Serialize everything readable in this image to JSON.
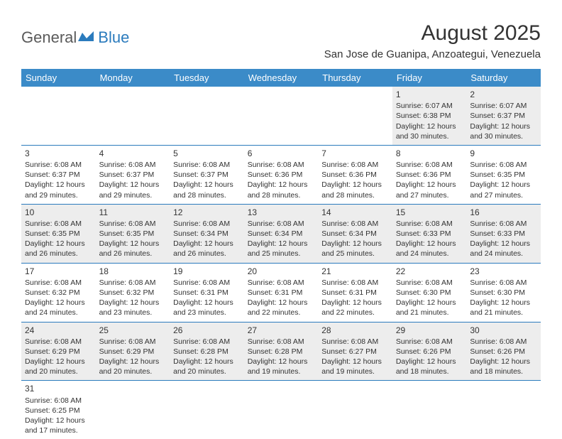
{
  "logo": {
    "part1": "General",
    "part2": "Blue"
  },
  "title": "August 2025",
  "location": "San Jose de Guanipa, Anzoategui, Venezuela",
  "colors": {
    "header_bg": "#3b8bc8",
    "header_text": "#ffffff",
    "border": "#2b7bbd",
    "shaded_bg": "#ededed",
    "text": "#333333",
    "logo_gray": "#5a5a5a",
    "logo_blue": "#2b7bbd"
  },
  "weekdays": [
    "Sunday",
    "Monday",
    "Tuesday",
    "Wednesday",
    "Thursday",
    "Friday",
    "Saturday"
  ],
  "weeks": [
    [
      null,
      null,
      null,
      null,
      null,
      {
        "n": "1",
        "sr": "6:07 AM",
        "ss": "6:38 PM",
        "dl": "12 hours and 30 minutes."
      },
      {
        "n": "2",
        "sr": "6:07 AM",
        "ss": "6:37 PM",
        "dl": "12 hours and 30 minutes."
      }
    ],
    [
      {
        "n": "3",
        "sr": "6:08 AM",
        "ss": "6:37 PM",
        "dl": "12 hours and 29 minutes."
      },
      {
        "n": "4",
        "sr": "6:08 AM",
        "ss": "6:37 PM",
        "dl": "12 hours and 29 minutes."
      },
      {
        "n": "5",
        "sr": "6:08 AM",
        "ss": "6:37 PM",
        "dl": "12 hours and 28 minutes."
      },
      {
        "n": "6",
        "sr": "6:08 AM",
        "ss": "6:36 PM",
        "dl": "12 hours and 28 minutes."
      },
      {
        "n": "7",
        "sr": "6:08 AM",
        "ss": "6:36 PM",
        "dl": "12 hours and 28 minutes."
      },
      {
        "n": "8",
        "sr": "6:08 AM",
        "ss": "6:36 PM",
        "dl": "12 hours and 27 minutes."
      },
      {
        "n": "9",
        "sr": "6:08 AM",
        "ss": "6:35 PM",
        "dl": "12 hours and 27 minutes."
      }
    ],
    [
      {
        "n": "10",
        "sr": "6:08 AM",
        "ss": "6:35 PM",
        "dl": "12 hours and 26 minutes."
      },
      {
        "n": "11",
        "sr": "6:08 AM",
        "ss": "6:35 PM",
        "dl": "12 hours and 26 minutes."
      },
      {
        "n": "12",
        "sr": "6:08 AM",
        "ss": "6:34 PM",
        "dl": "12 hours and 26 minutes."
      },
      {
        "n": "13",
        "sr": "6:08 AM",
        "ss": "6:34 PM",
        "dl": "12 hours and 25 minutes."
      },
      {
        "n": "14",
        "sr": "6:08 AM",
        "ss": "6:34 PM",
        "dl": "12 hours and 25 minutes."
      },
      {
        "n": "15",
        "sr": "6:08 AM",
        "ss": "6:33 PM",
        "dl": "12 hours and 24 minutes."
      },
      {
        "n": "16",
        "sr": "6:08 AM",
        "ss": "6:33 PM",
        "dl": "12 hours and 24 minutes."
      }
    ],
    [
      {
        "n": "17",
        "sr": "6:08 AM",
        "ss": "6:32 PM",
        "dl": "12 hours and 24 minutes."
      },
      {
        "n": "18",
        "sr": "6:08 AM",
        "ss": "6:32 PM",
        "dl": "12 hours and 23 minutes."
      },
      {
        "n": "19",
        "sr": "6:08 AM",
        "ss": "6:31 PM",
        "dl": "12 hours and 23 minutes."
      },
      {
        "n": "20",
        "sr": "6:08 AM",
        "ss": "6:31 PM",
        "dl": "12 hours and 22 minutes."
      },
      {
        "n": "21",
        "sr": "6:08 AM",
        "ss": "6:31 PM",
        "dl": "12 hours and 22 minutes."
      },
      {
        "n": "22",
        "sr": "6:08 AM",
        "ss": "6:30 PM",
        "dl": "12 hours and 21 minutes."
      },
      {
        "n": "23",
        "sr": "6:08 AM",
        "ss": "6:30 PM",
        "dl": "12 hours and 21 minutes."
      }
    ],
    [
      {
        "n": "24",
        "sr": "6:08 AM",
        "ss": "6:29 PM",
        "dl": "12 hours and 20 minutes."
      },
      {
        "n": "25",
        "sr": "6:08 AM",
        "ss": "6:29 PM",
        "dl": "12 hours and 20 minutes."
      },
      {
        "n": "26",
        "sr": "6:08 AM",
        "ss": "6:28 PM",
        "dl": "12 hours and 20 minutes."
      },
      {
        "n": "27",
        "sr": "6:08 AM",
        "ss": "6:28 PM",
        "dl": "12 hours and 19 minutes."
      },
      {
        "n": "28",
        "sr": "6:08 AM",
        "ss": "6:27 PM",
        "dl": "12 hours and 19 minutes."
      },
      {
        "n": "29",
        "sr": "6:08 AM",
        "ss": "6:26 PM",
        "dl": "12 hours and 18 minutes."
      },
      {
        "n": "30",
        "sr": "6:08 AM",
        "ss": "6:26 PM",
        "dl": "12 hours and 18 minutes."
      }
    ],
    [
      {
        "n": "31",
        "sr": "6:08 AM",
        "ss": "6:25 PM",
        "dl": "12 hours and 17 minutes."
      },
      null,
      null,
      null,
      null,
      null,
      null
    ]
  ],
  "labels": {
    "sunrise": "Sunrise: ",
    "sunset": "Sunset: ",
    "daylight": "Daylight: "
  }
}
